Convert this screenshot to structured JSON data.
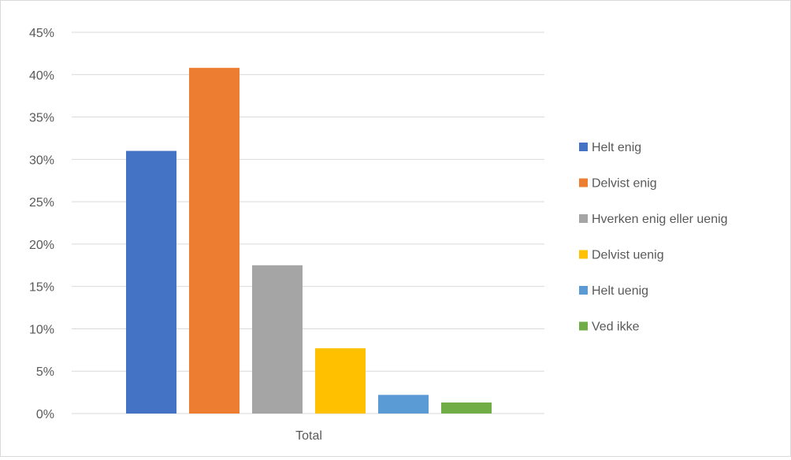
{
  "chart_data": {
    "type": "bar",
    "categories": [
      "Total"
    ],
    "series": [
      {
        "name": "Helt enig",
        "values": [
          31
        ],
        "color": "#4472C4"
      },
      {
        "name": "Delvist enig",
        "values": [
          40.8
        ],
        "color": "#ED7D31"
      },
      {
        "name": "Hverken enig eller uenig",
        "values": [
          17.5
        ],
        "color": "#A5A5A5"
      },
      {
        "name": "Delvist uenig",
        "values": [
          7.7
        ],
        "color": "#FFC000"
      },
      {
        "name": "Helt uenig",
        "values": [
          2.2
        ],
        "color": "#5B9BD5"
      },
      {
        "name": "Ved ikke",
        "values": [
          1.3
        ],
        "color": "#70AD47"
      }
    ],
    "ylim": [
      0,
      45
    ],
    "yticks": [
      0,
      5,
      10,
      15,
      20,
      25,
      30,
      35,
      40,
      45
    ],
    "ytick_format": "%",
    "title": "",
    "xlabel": "",
    "ylabel": "",
    "grid": true,
    "legend_position": "right"
  }
}
